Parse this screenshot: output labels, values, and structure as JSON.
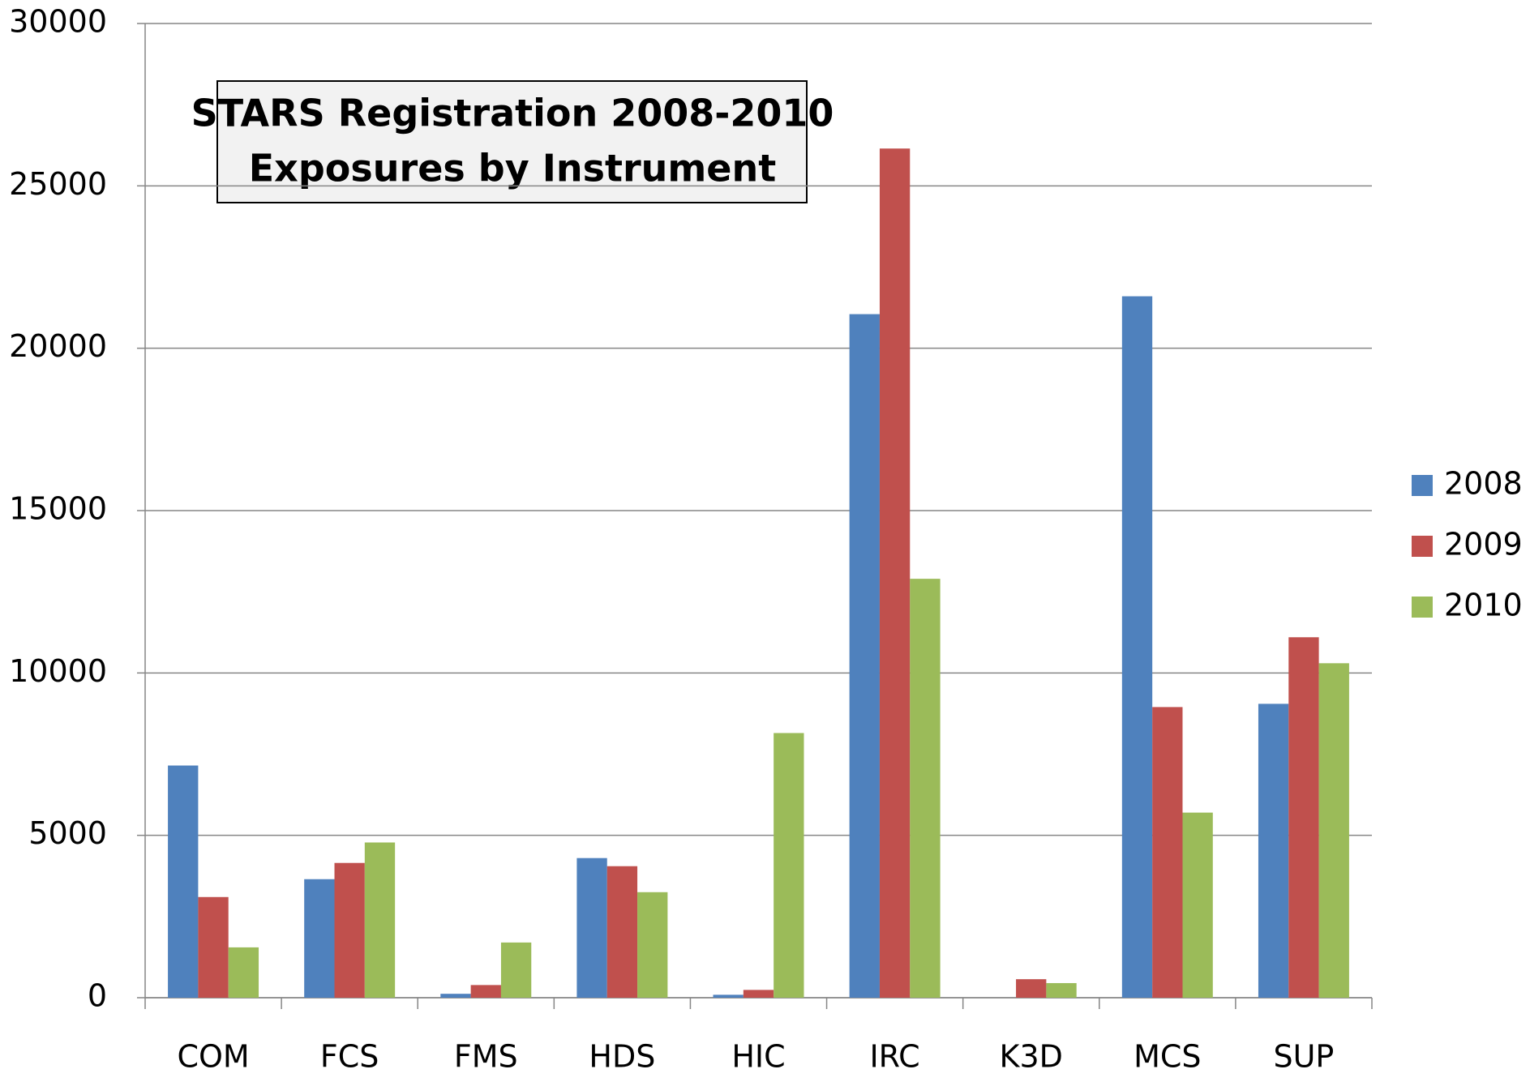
{
  "chart_data": {
    "type": "bar",
    "title": [
      "STARS Registration 2008-2010",
      "Exposures by Instrument"
    ],
    "categories": [
      "COM",
      "FCS",
      "FMS",
      "HDS",
      "HIC",
      "IRC",
      "K3D",
      "MCS",
      "SUP"
    ],
    "series": [
      {
        "name": "2008",
        "color": "#4f81bd",
        "values": [
          7150,
          3650,
          120,
          4300,
          90,
          21050,
          0,
          21600,
          9050
        ]
      },
      {
        "name": "2009",
        "color": "#c0504d",
        "values": [
          3100,
          4150,
          390,
          4050,
          240,
          26150,
          570,
          8950,
          11100
        ]
      },
      {
        "name": "2010",
        "color": "#9bbb59",
        "values": [
          1550,
          4780,
          1700,
          3250,
          8150,
          12900,
          450,
          5700,
          10300
        ]
      }
    ],
    "ylim": [
      0,
      30000
    ],
    "yticks": [
      0,
      5000,
      10000,
      15000,
      20000,
      25000,
      30000
    ],
    "grid": true,
    "legend": "right"
  }
}
